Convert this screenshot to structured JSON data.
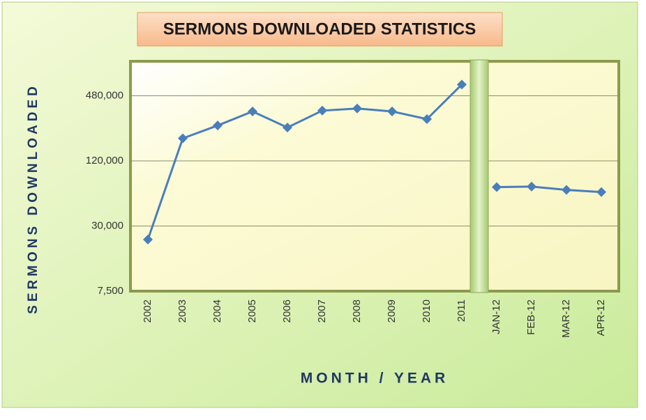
{
  "chart_data": {
    "type": "line",
    "title": "SERMONS DOWNLOADED STATISTICS",
    "x_label": "MONTH / YEAR",
    "y_label": "SERMONS DOWNLOADED",
    "categories": [
      "2002",
      "2003",
      "2004",
      "2005",
      "2006",
      "2007",
      "2008",
      "2009",
      "2010",
      "2011",
      "JAN-12",
      "FEB-12",
      "MAR-12",
      "APR-12"
    ],
    "series": [
      {
        "color": "#4a7ebb",
        "values": [
          22500,
          194000,
          255000,
          344000,
          244000,
          350000,
          366000,
          344000,
          292000,
          610000,
          68700,
          69500,
          64700,
          61800
        ]
      }
    ],
    "ylim": [
      7500,
      1000000
    ],
    "log_scale": true,
    "yticks": [
      {
        "value": 7500,
        "label": "7,500"
      },
      {
        "value": 30000,
        "label": "30,000"
      },
      {
        "value": 120000,
        "label": "120,000"
      },
      {
        "value": 480000,
        "label": "480,000"
      }
    ],
    "grid": true,
    "axis_break_after": 9
  }
}
